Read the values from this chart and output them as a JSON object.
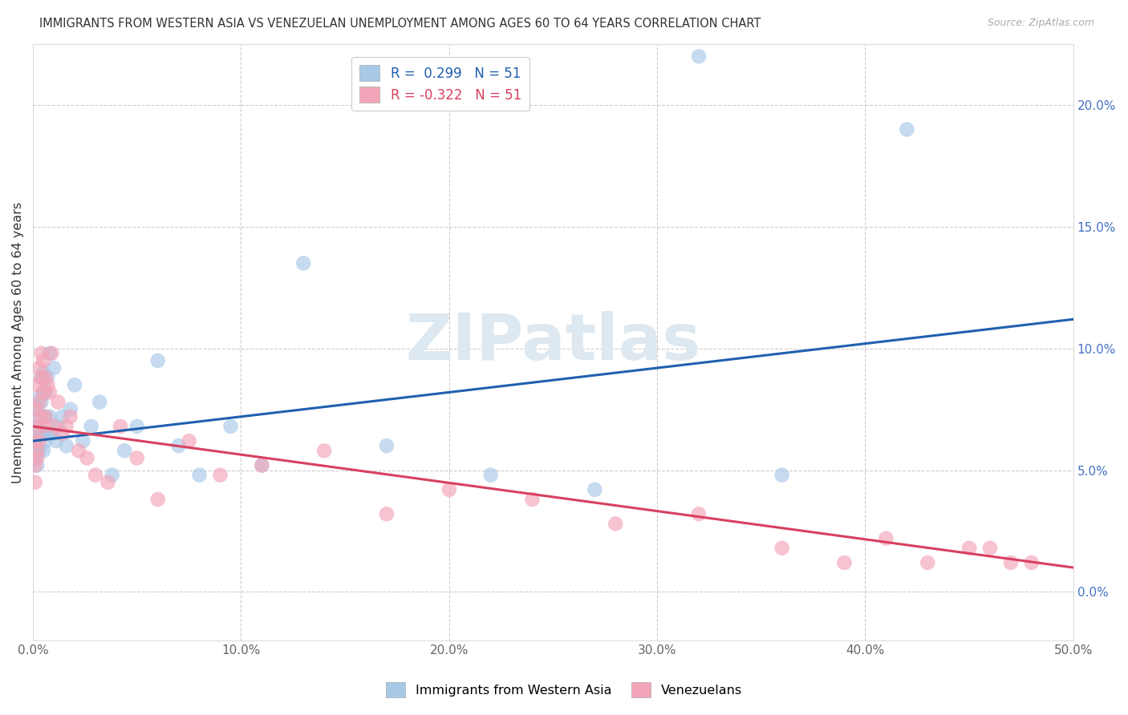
{
  "title": "IMMIGRANTS FROM WESTERN ASIA VS VENEZUELAN UNEMPLOYMENT AMONG AGES 60 TO 64 YEARS CORRELATION CHART",
  "source": "Source: ZipAtlas.com",
  "ylabel": "Unemployment Among Ages 60 to 64 years",
  "xlim": [
    0,
    0.5
  ],
  "ylim": [
    -0.02,
    0.225
  ],
  "xticks": [
    0.0,
    0.1,
    0.2,
    0.3,
    0.4,
    0.5
  ],
  "yticks_right": [
    0.0,
    0.05,
    0.1,
    0.15,
    0.2
  ],
  "ytick_labels_right": [
    "0.0%",
    "5.0%",
    "10.0%",
    "15.0%",
    "20.0%"
  ],
  "xtick_labels": [
    "0.0%",
    "10.0%",
    "20.0%",
    "30.0%",
    "40.0%",
    "50.0%"
  ],
  "blue_R": 0.299,
  "blue_N": 51,
  "pink_R": -0.322,
  "pink_N": 51,
  "blue_color": "#a8c8e8",
  "pink_color": "#f4a4b8",
  "blue_line_color": "#2060b0",
  "pink_line_color": "#d84060",
  "watermark": "ZIPatlas",
  "watermark_color": "#dde8f0",
  "legend_label_blue": "Immigrants from Western Asia",
  "legend_label_pink": "Venezuelans",
  "blue_trend_x": [
    0.0,
    0.5
  ],
  "blue_trend_y": [
    0.062,
    0.112
  ],
  "pink_trend_x": [
    0.0,
    0.5
  ],
  "pink_trend_y": [
    0.068,
    0.01
  ],
  "blue_scatter_x": [
    0.001,
    0.001,
    0.001,
    0.001,
    0.002,
    0.002,
    0.002,
    0.002,
    0.003,
    0.003,
    0.003,
    0.004,
    0.004,
    0.004,
    0.005,
    0.005,
    0.005,
    0.005,
    0.006,
    0.006,
    0.006,
    0.007,
    0.007,
    0.008,
    0.008,
    0.009,
    0.01,
    0.011,
    0.012,
    0.014,
    0.016,
    0.018,
    0.02,
    0.024,
    0.028,
    0.032,
    0.038,
    0.044,
    0.05,
    0.06,
    0.07,
    0.08,
    0.095,
    0.11,
    0.13,
    0.17,
    0.22,
    0.27,
    0.32,
    0.36,
    0.42
  ],
  "blue_scatter_y": [
    0.065,
    0.072,
    0.055,
    0.06,
    0.075,
    0.068,
    0.058,
    0.052,
    0.08,
    0.068,
    0.058,
    0.078,
    0.088,
    0.065,
    0.09,
    0.082,
    0.065,
    0.058,
    0.082,
    0.072,
    0.062,
    0.088,
    0.065,
    0.098,
    0.072,
    0.065,
    0.092,
    0.062,
    0.068,
    0.072,
    0.06,
    0.075,
    0.085,
    0.062,
    0.068,
    0.078,
    0.048,
    0.058,
    0.068,
    0.095,
    0.06,
    0.048,
    0.068,
    0.052,
    0.135,
    0.06,
    0.048,
    0.042,
    0.22,
    0.048,
    0.19
  ],
  "pink_scatter_x": [
    0.001,
    0.001,
    0.001,
    0.001,
    0.002,
    0.002,
    0.002,
    0.002,
    0.003,
    0.003,
    0.003,
    0.004,
    0.004,
    0.004,
    0.005,
    0.005,
    0.005,
    0.006,
    0.006,
    0.007,
    0.008,
    0.009,
    0.01,
    0.012,
    0.014,
    0.016,
    0.018,
    0.022,
    0.026,
    0.03,
    0.036,
    0.042,
    0.05,
    0.06,
    0.075,
    0.09,
    0.11,
    0.14,
    0.17,
    0.2,
    0.24,
    0.28,
    0.32,
    0.36,
    0.39,
    0.41,
    0.43,
    0.45,
    0.46,
    0.47,
    0.48
  ],
  "pink_scatter_y": [
    0.052,
    0.062,
    0.075,
    0.045,
    0.085,
    0.068,
    0.055,
    0.058,
    0.092,
    0.078,
    0.062,
    0.088,
    0.098,
    0.072,
    0.095,
    0.082,
    0.068,
    0.088,
    0.072,
    0.085,
    0.082,
    0.098,
    0.068,
    0.078,
    0.065,
    0.068,
    0.072,
    0.058,
    0.055,
    0.048,
    0.045,
    0.068,
    0.055,
    0.038,
    0.062,
    0.048,
    0.052,
    0.058,
    0.032,
    0.042,
    0.038,
    0.028,
    0.032,
    0.018,
    0.012,
    0.022,
    0.012,
    0.018,
    0.018,
    0.012,
    0.012
  ]
}
